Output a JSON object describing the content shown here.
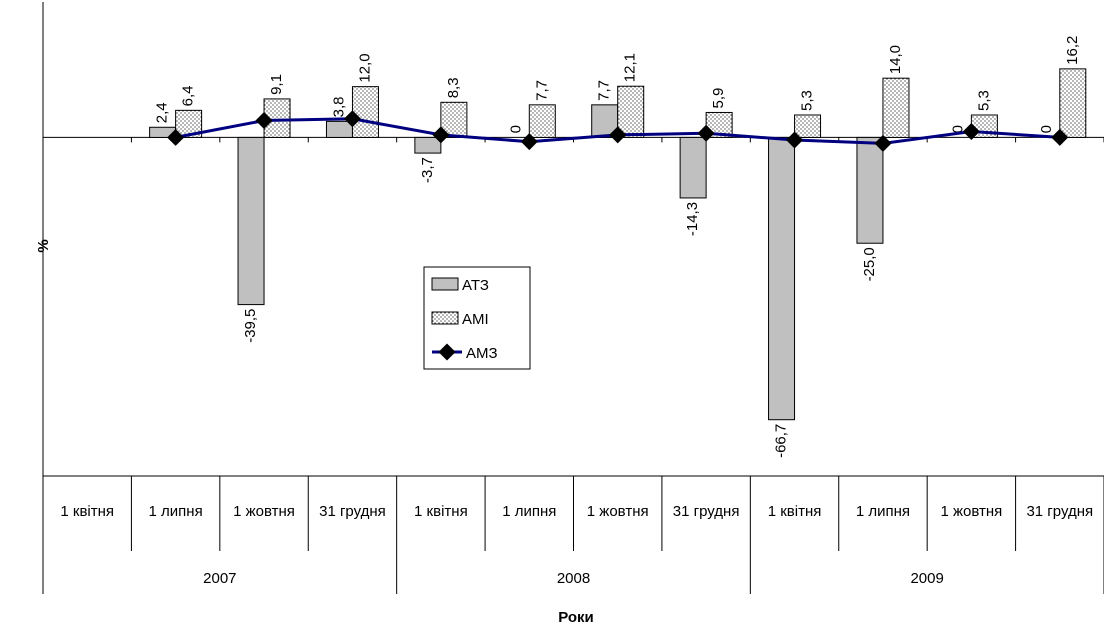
{
  "chart_data": {
    "type": "bar",
    "title": "",
    "xlabel": "Роки",
    "ylabel": "%",
    "ylim": [
      -80.0,
      32.0
    ],
    "grid": false,
    "legend_position": "center",
    "groups": [
      {
        "label": "2007",
        "categories": [
          "1 квітня",
          "1 липня",
          "1 жовтня",
          "31 грудня"
        ]
      },
      {
        "label": "2008",
        "categories": [
          "1 квітня",
          "1 липня",
          "1 жовтня",
          "31 грудня"
        ]
      },
      {
        "label": "2009",
        "categories": [
          "1 квітня",
          "1 липня",
          "1 жовтня",
          "31 грудня"
        ]
      }
    ],
    "categories": [
      "1 квітня",
      "1 липня",
      "1 жовтня",
      "31 грудня",
      "1 квітня",
      "1 липня",
      "1 жовтня",
      "31 грудня",
      "1 квітня",
      "1 липня",
      "1 жовтня",
      "31 грудня"
    ],
    "series": [
      {
        "name": "АТЗ",
        "kind": "bar",
        "color": "#c0c0c0",
        "values": [
          null,
          2.4,
          -39.5,
          3.8,
          -3.7,
          0,
          7.7,
          -14.3,
          -66.7,
          -25.0,
          0,
          0
        ],
        "labels": [
          "",
          "2,4",
          "-39,5",
          "3,8",
          "-3,7",
          "0",
          "7,7",
          "-14,3",
          "-66,7",
          "-25,0",
          "0",
          "0"
        ]
      },
      {
        "name": "АМІ",
        "kind": "bar",
        "pattern": "dots",
        "color": "#ffffff",
        "values": [
          null,
          6.4,
          9.1,
          12.0,
          8.3,
          7.7,
          12.1,
          5.9,
          5.3,
          14.0,
          5.3,
          16.2
        ],
        "labels": [
          "",
          "6,4",
          "9,1",
          "12,0",
          "8,3",
          "7,7",
          "12,1",
          "5,9",
          "5,3",
          "14,0",
          "5,3",
          "16,2"
        ]
      },
      {
        "name": "АМЗ",
        "kind": "line",
        "color": "#000080",
        "values": [
          null,
          0.0,
          4.0,
          4.4,
          0.6,
          -1.0,
          0.6,
          1.0,
          -0.6,
          -1.4,
          1.4,
          0.0
        ]
      }
    ]
  }
}
